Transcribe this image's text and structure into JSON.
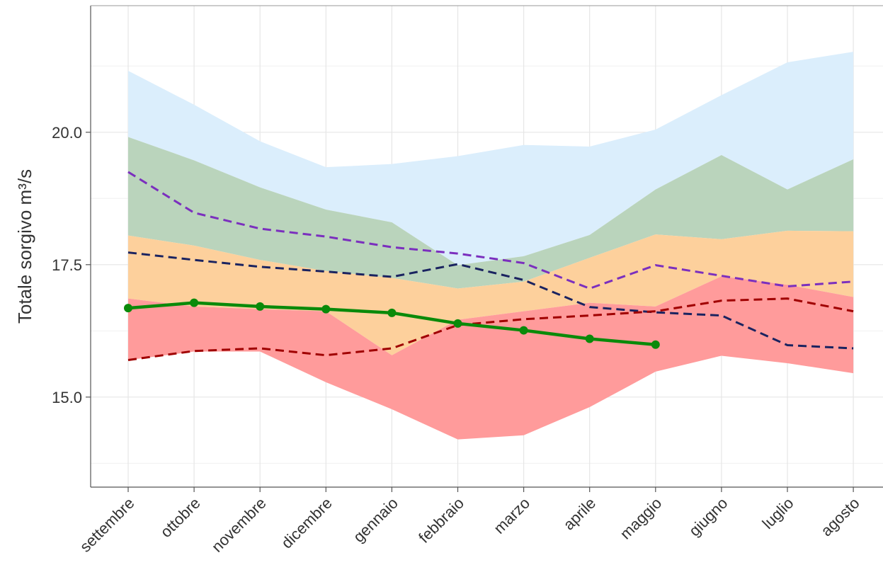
{
  "chart_data": {
    "type": "band-line",
    "y_label": "Totale sorgivo m³/s",
    "categories": [
      "settembre",
      "ottobre",
      "novembre",
      "dicembre",
      "gennaio",
      "febbraio",
      "marzo",
      "aprile",
      "maggio",
      "giugno",
      "luglio",
      "agosto"
    ],
    "ylim": [
      13.3,
      22.39
    ],
    "yticks": [
      {
        "value": 15,
        "label": "15.0"
      },
      17.5,
      {
        "value": 20,
        "label": "20.0"
      }
    ],
    "minor_yticks": [
      13.75,
      16.25,
      18.75,
      21.25
    ],
    "grid": true,
    "bands": [
      {
        "color": "#dbeefc",
        "upper": [
          21.16,
          20.52,
          19.83,
          19.34,
          19.4,
          19.55,
          19.76,
          19.73,
          20.05,
          20.7,
          21.32,
          21.52
        ],
        "lower": [
          19.91,
          19.47,
          18.96,
          18.54,
          18.3,
          17.49,
          17.66,
          18.06,
          18.92,
          19.57,
          18.92,
          19.49
        ]
      },
      {
        "color": "#bad4bc",
        "upper": [
          19.91,
          19.47,
          18.96,
          18.54,
          18.3,
          17.49,
          17.66,
          18.06,
          18.92,
          19.57,
          18.92,
          19.49
        ],
        "lower": [
          18.05,
          17.86,
          17.59,
          17.38,
          17.25,
          17.05,
          17.18,
          17.63,
          18.07,
          17.98,
          18.14,
          18.13
        ]
      },
      {
        "color": "#fdd09c",
        "upper": [
          18.05,
          17.86,
          17.59,
          17.38,
          17.25,
          17.05,
          17.18,
          17.63,
          18.07,
          17.98,
          18.14,
          18.13
        ],
        "lower": [
          16.86,
          16.71,
          16.66,
          16.62,
          15.79,
          16.46,
          16.62,
          16.78,
          16.71,
          17.28,
          17.12,
          16.89
        ]
      },
      {
        "color": "#ff9b9b",
        "upper": [
          16.86,
          16.71,
          16.66,
          16.62,
          15.79,
          16.46,
          16.62,
          16.78,
          16.71,
          17.28,
          17.12,
          16.89
        ],
        "lower": [
          15.7,
          15.86,
          15.86,
          15.28,
          14.77,
          14.2,
          14.28,
          14.81,
          15.48,
          15.78,
          15.64,
          15.45
        ]
      }
    ],
    "series": [
      {
        "color": "#7b2fbe",
        "dashed": true,
        "values": [
          19.25,
          18.48,
          18.18,
          18.03,
          17.83,
          17.71,
          17.53,
          17.05,
          17.49,
          17.29,
          17.09,
          17.18
        ]
      },
      {
        "color": "#1a2360",
        "dashed": true,
        "values": [
          17.73,
          17.59,
          17.46,
          17.37,
          17.27,
          17.51,
          17.21,
          16.7,
          16.6,
          16.54,
          15.98,
          15.92
        ]
      },
      {
        "color": "#a00000",
        "dashed": true,
        "values": [
          15.7,
          15.87,
          15.92,
          15.79,
          15.92,
          16.36,
          16.47,
          16.54,
          16.62,
          16.82,
          16.86,
          16.62
        ]
      },
      {
        "color": "#0a8a0a",
        "dashed": false,
        "markers": true,
        "values": [
          16.68,
          16.78,
          16.71,
          16.66,
          16.59,
          16.39,
          16.26,
          16.1,
          15.99,
          null,
          null,
          null
        ]
      }
    ]
  }
}
